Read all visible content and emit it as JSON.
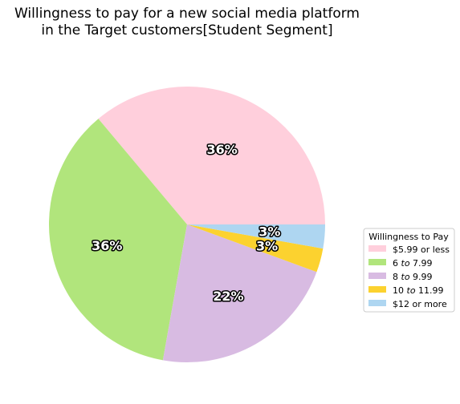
{
  "chart_data": {
    "type": "pie",
    "title_lines": [
      "Willingness to pay for a new social media platform",
      "in the Target customers[Student Segment]"
    ],
    "legend_title": "Willingness to Pay",
    "legend_position": "center-right",
    "start_angle_deg": 0,
    "direction": "counterclockwise",
    "slices": [
      {
        "label": "$5.99 or less",
        "label_parts": [
          {
            "t": "$5.99 or less"
          }
        ],
        "value": 36.1,
        "pct_label": "36%",
        "color": "#ffcfdc"
      },
      {
        "label": "$6 to $7.99",
        "label_parts": [
          {
            "t": "6 "
          },
          {
            "t": "to",
            "i": true
          },
          {
            "t": " 7.99"
          }
        ],
        "value": 36.1,
        "pct_label": "36%",
        "color": "#b1e57c"
      },
      {
        "label": "$8 to $9.99",
        "label_parts": [
          {
            "t": "8 "
          },
          {
            "t": "to",
            "i": true
          },
          {
            "t": " 9.99"
          }
        ],
        "value": 22.2,
        "pct_label": "22%",
        "color": "#d8bbe2"
      },
      {
        "label": "$10 to $11.99",
        "label_parts": [
          {
            "t": "10 "
          },
          {
            "t": "to",
            "i": true
          },
          {
            "t": " 11.99"
          }
        ],
        "value": 2.8,
        "pct_label": "3%",
        "color": "#fcd22f"
      },
      {
        "label": "$12 or more",
        "label_parts": [
          {
            "t": "$12 or more"
          }
        ],
        "value": 2.8,
        "pct_label": "3%",
        "color": "#aed6f1"
      }
    ]
  }
}
